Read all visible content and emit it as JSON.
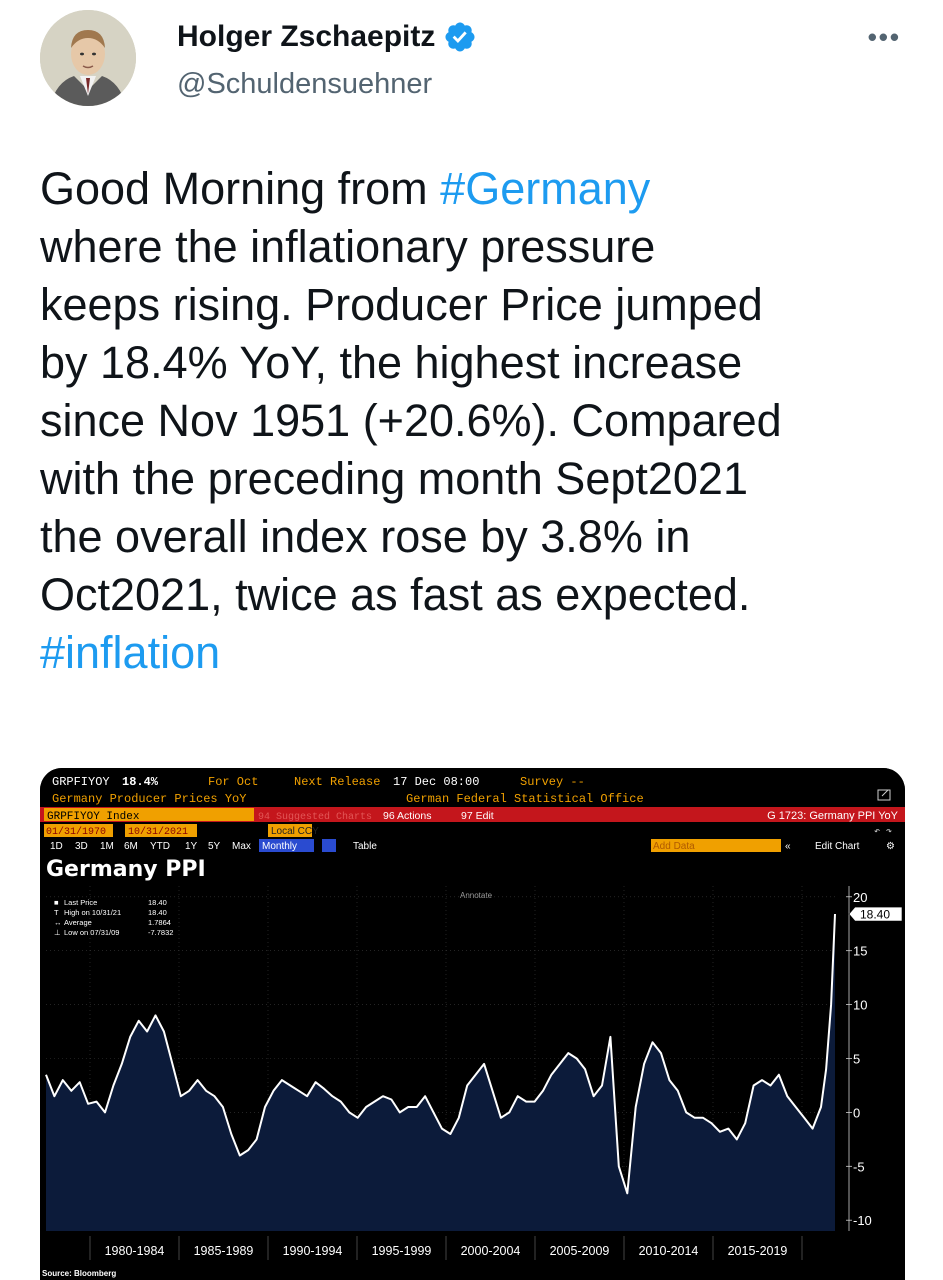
{
  "user": {
    "name": "Holger Zschaepitz",
    "handle": "@Schuldensuehner"
  },
  "menu": {
    "more_label": "•••"
  },
  "tweet": {
    "lines": [
      [
        {
          "t": "Good Morning from "
        },
        {
          "t": "#Germany",
          "tag": true
        }
      ],
      [
        {
          "t": "where the inflationary pressure"
        }
      ],
      [
        {
          "t": "keeps rising. Producer Price jumped"
        }
      ],
      [
        {
          "t": "by 18.4% YoY, the highest increase"
        }
      ],
      [
        {
          "t": "since Nov 1951 (+20.6%). Compared"
        }
      ],
      [
        {
          "t": "with the preceding month Sept2021"
        }
      ],
      [
        {
          "t": "the overall index rose by 3.8% in"
        }
      ],
      [
        {
          "t": "Oct2021, twice as fast as expected."
        }
      ],
      [
        {
          "t": "#inflation",
          "tag": true
        }
      ]
    ]
  },
  "terminal": {
    "ticker": "GRPFIYOY",
    "ticker_value": "18.4%",
    "for_label": "For Oct",
    "next_release_label": "Next Release",
    "next_release_value": "17 Dec 08:00",
    "survey_label": "Survey --",
    "series_desc": "Germany Producer Prices YoY",
    "source_org": "German Federal Statistical Office",
    "index_label": "GRPFIYOY Index",
    "suggested_label": "94 Suggested Charts",
    "actions_label": "96 Actions",
    "edit_label": "97 Edit",
    "chart_id": "G 1723: Germany PPI YoY",
    "date_start": "01/31/1970",
    "date_end": "10/31/2021",
    "ccy_label": "Local CCY",
    "periods": [
      "1D",
      "3D",
      "1M",
      "6M",
      "YTD",
      "1Y",
      "5Y",
      "Max"
    ],
    "frequency": "Monthly",
    "table_label": "Table",
    "add_data_label": "Add Data",
    "edit_chart_label": "Edit Chart",
    "annotate_label": "Annotate",
    "chart_title": "Germany PPI",
    "legend": [
      {
        "label": "Last Price",
        "value": "18.40"
      },
      {
        "label": "High on 10/31/21",
        "value": "18.40"
      },
      {
        "label": "Average",
        "value": "1.7864"
      },
      {
        "label": "Low on 07/31/09",
        "value": "-7.7832"
      }
    ],
    "last_value_badge": "18.40",
    "source_label": "Source: Bloomberg"
  },
  "chart_data": {
    "type": "area",
    "title": "Germany PPI",
    "ylim": [
      -11,
      21
    ],
    "yticks": [
      20,
      15,
      10,
      5,
      0,
      -5,
      -10
    ],
    "period_labels": [
      "1980-1984",
      "1985-1989",
      "1990-1994",
      "1995-1999",
      "2000-2004",
      "2005-2009",
      "2010-2014",
      "2015-2019"
    ],
    "x": [
      1975.0,
      1975.5,
      1976.0,
      1976.5,
      1977.0,
      1977.5,
      1978.0,
      1978.5,
      1979.0,
      1979.5,
      1980.0,
      1980.5,
      1981.0,
      1981.5,
      1982.0,
      1982.5,
      1983.0,
      1983.5,
      1984.0,
      1984.5,
      1985.0,
      1985.5,
      1986.0,
      1986.5,
      1987.0,
      1987.5,
      1988.0,
      1988.5,
      1989.0,
      1989.5,
      1990.0,
      1990.5,
      1991.0,
      1991.5,
      1992.0,
      1992.5,
      1993.0,
      1993.5,
      1994.0,
      1994.5,
      1995.0,
      1995.5,
      1996.0,
      1996.5,
      1997.0,
      1997.5,
      1998.0,
      1998.5,
      1999.0,
      1999.5,
      2000.0,
      2000.5,
      2001.0,
      2001.5,
      2002.0,
      2002.5,
      2003.0,
      2003.5,
      2004.0,
      2004.5,
      2005.0,
      2005.5,
      2006.0,
      2006.5,
      2007.0,
      2007.5,
      2008.0,
      2008.5,
      2009.0,
      2009.5,
      2010.0,
      2010.5,
      2011.0,
      2011.5,
      2012.0,
      2012.5,
      2013.0,
      2013.5,
      2014.0,
      2014.5,
      2015.0,
      2015.5,
      2016.0,
      2016.5,
      2017.0,
      2017.5,
      2018.0,
      2018.5,
      2019.0,
      2019.5,
      2020.0,
      2020.5,
      2021.0,
      2021.3,
      2021.6,
      2021.83
    ],
    "values": [
      3.5,
      1.5,
      3.0,
      2.0,
      2.8,
      0.8,
      1.0,
      0.0,
      2.5,
      4.5,
      7.0,
      8.5,
      7.5,
      9.0,
      7.5,
      4.5,
      1.5,
      2.0,
      3.0,
      2.0,
      1.5,
      0.5,
      -2.0,
      -4.0,
      -3.5,
      -2.5,
      0.5,
      2.0,
      3.0,
      2.5,
      2.0,
      1.5,
      2.8,
      2.2,
      1.5,
      1.0,
      0.0,
      -0.5,
      0.5,
      1.0,
      1.5,
      1.2,
      0.0,
      0.5,
      0.5,
      1.5,
      0.0,
      -1.5,
      -2.0,
      -0.5,
      2.5,
      3.5,
      4.5,
      2.0,
      -0.5,
      0.0,
      1.5,
      1.0,
      1.0,
      2.0,
      3.5,
      4.5,
      5.5,
      5.0,
      4.0,
      1.5,
      2.5,
      7.0,
      -5.0,
      -7.5,
      0.5,
      4.5,
      6.5,
      5.5,
      3.0,
      2.0,
      0.0,
      -0.5,
      -0.5,
      -1.0,
      -1.8,
      -1.5,
      -2.5,
      -1.0,
      2.5,
      3.0,
      2.5,
      3.5,
      1.5,
      0.5,
      -0.5,
      -1.5,
      0.5,
      4.0,
      10.0,
      18.4
    ]
  }
}
